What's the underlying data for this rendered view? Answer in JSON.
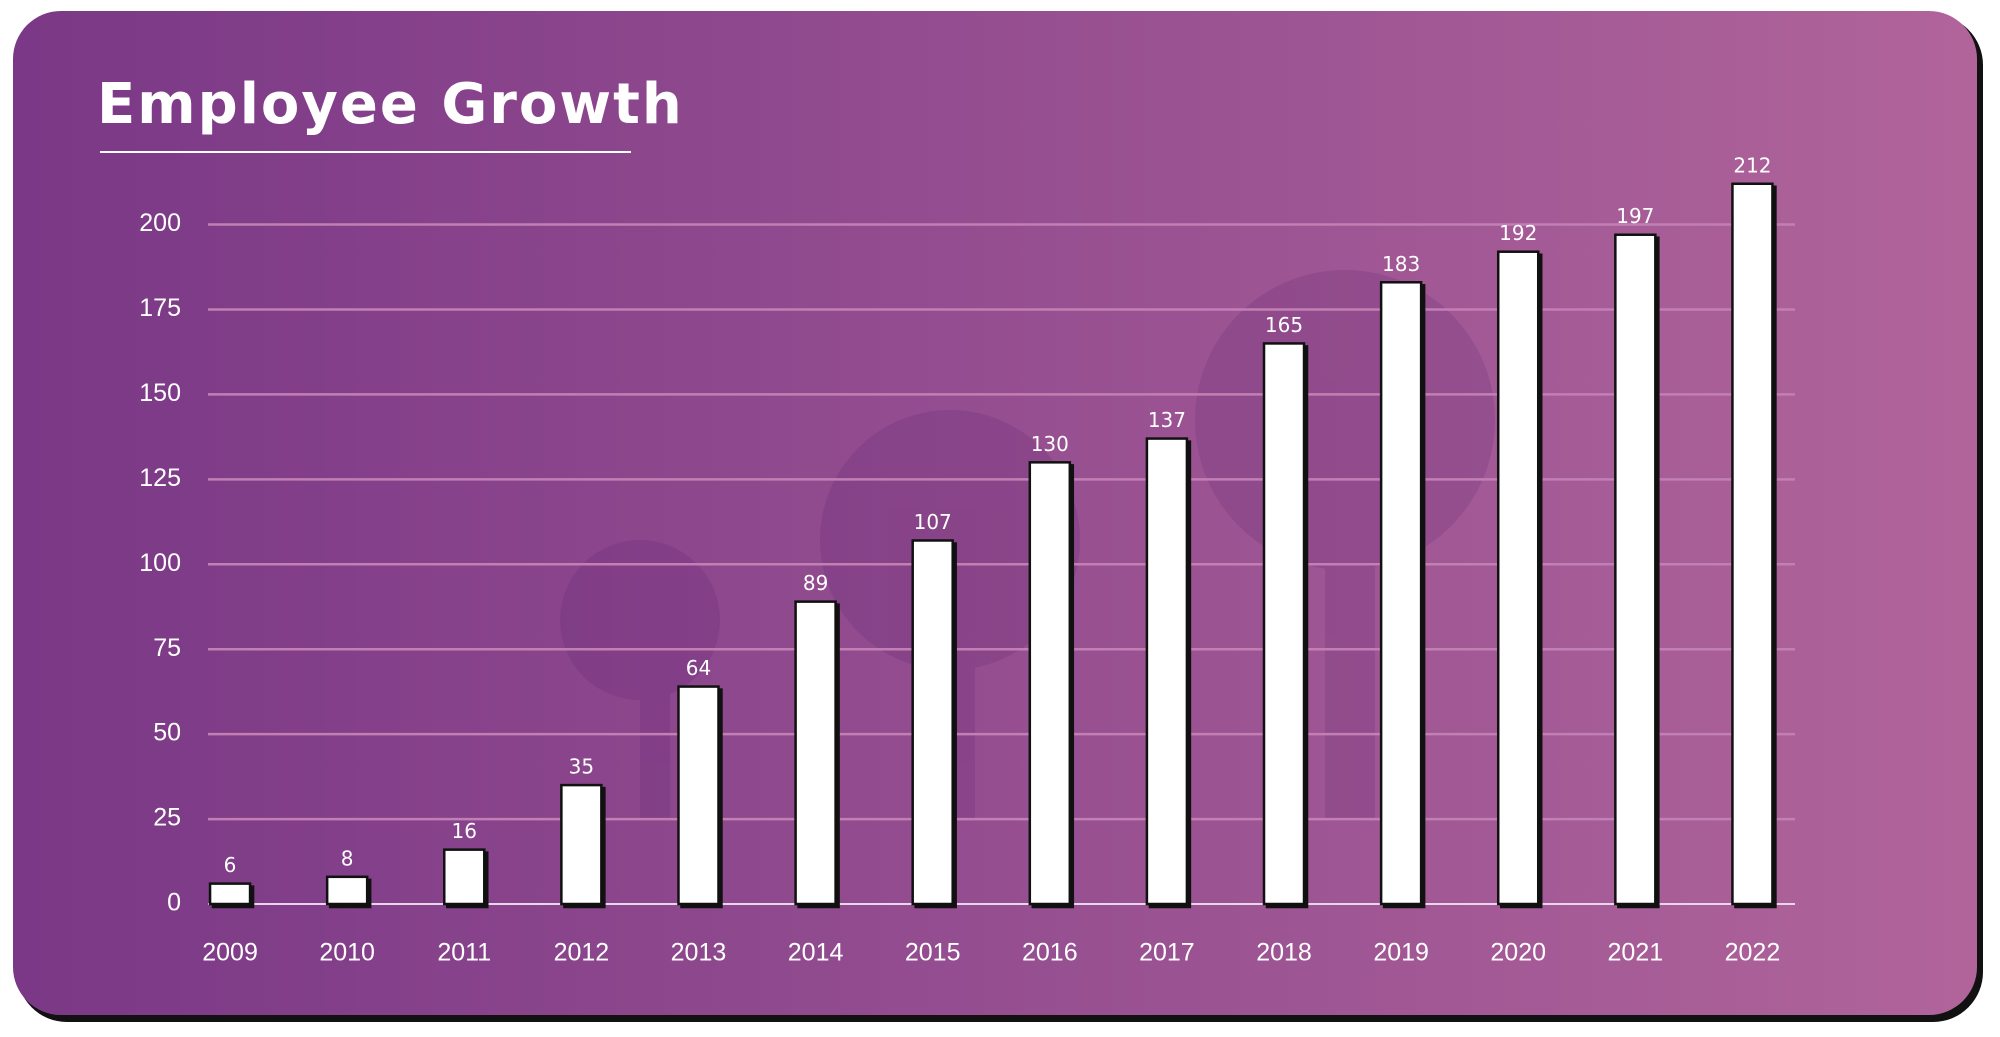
{
  "chart_data": {
    "type": "bar",
    "title": "Employee Growth",
    "categories": [
      "2009",
      "2010",
      "2011",
      "2012",
      "2013",
      "2014",
      "2015",
      "2016",
      "2017",
      "2018",
      "2019",
      "2020",
      "2021",
      "2022"
    ],
    "values": [
      6,
      8,
      16,
      35,
      64,
      89,
      107,
      130,
      137,
      165,
      183,
      192,
      197,
      212
    ],
    "color": "#ffffff",
    "ylim": [
      0,
      225
    ],
    "yticks": [
      0,
      25,
      50,
      75,
      100,
      125,
      150,
      175,
      200
    ],
    "grid": true
  }
}
